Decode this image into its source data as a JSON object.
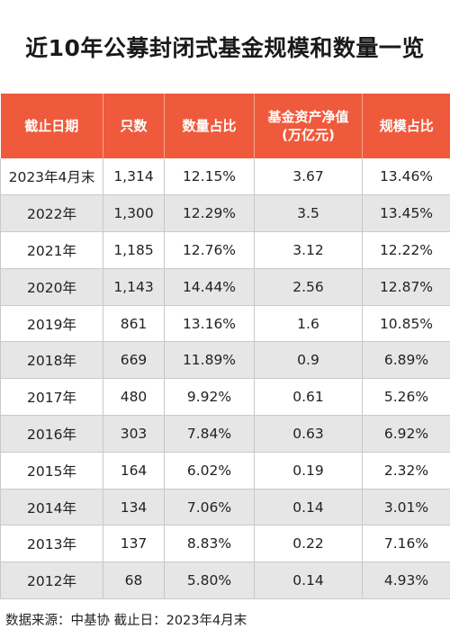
{
  "title": "近10年公募封闭式基金规模和数量一览",
  "table": {
    "headers": [
      "截止日期",
      "只数",
      "数量占比",
      "基金资产净值",
      "规模占比"
    ],
    "header_sub": "(万亿元)",
    "rows": [
      [
        "2023年4月末",
        "1,314",
        "12.15%",
        "3.67",
        "13.46%"
      ],
      [
        "2022年",
        "1,300",
        "12.29%",
        "3.5",
        "13.45%"
      ],
      [
        "2021年",
        "1,185",
        "12.76%",
        "3.12",
        "12.22%"
      ],
      [
        "2020年",
        "1,143",
        "14.44%",
        "2.56",
        "12.87%"
      ],
      [
        "2019年",
        "861",
        "13.16%",
        "1.6",
        "10.85%"
      ],
      [
        "2018年",
        "669",
        "11.89%",
        "0.9",
        "6.89%"
      ],
      [
        "2017年",
        "480",
        "9.92%",
        "0.61",
        "5.26%"
      ],
      [
        "2016年",
        "303",
        "7.84%",
        "0.63",
        "6.92%"
      ],
      [
        "2015年",
        "164",
        "6.02%",
        "0.19",
        "2.32%"
      ],
      [
        "2014年",
        "134",
        "7.06%",
        "0.14",
        "3.01%"
      ],
      [
        "2013年",
        "137",
        "8.83%",
        "0.22",
        "7.16%"
      ],
      [
        "2012年",
        "68",
        "5.80%",
        "0.14",
        "4.93%"
      ]
    ]
  },
  "footer": "数据来源：中基协   截止日：2023年4月末",
  "colors": {
    "header_bg": "#f05a3c",
    "stripe_bg": "#e6e6e6"
  }
}
